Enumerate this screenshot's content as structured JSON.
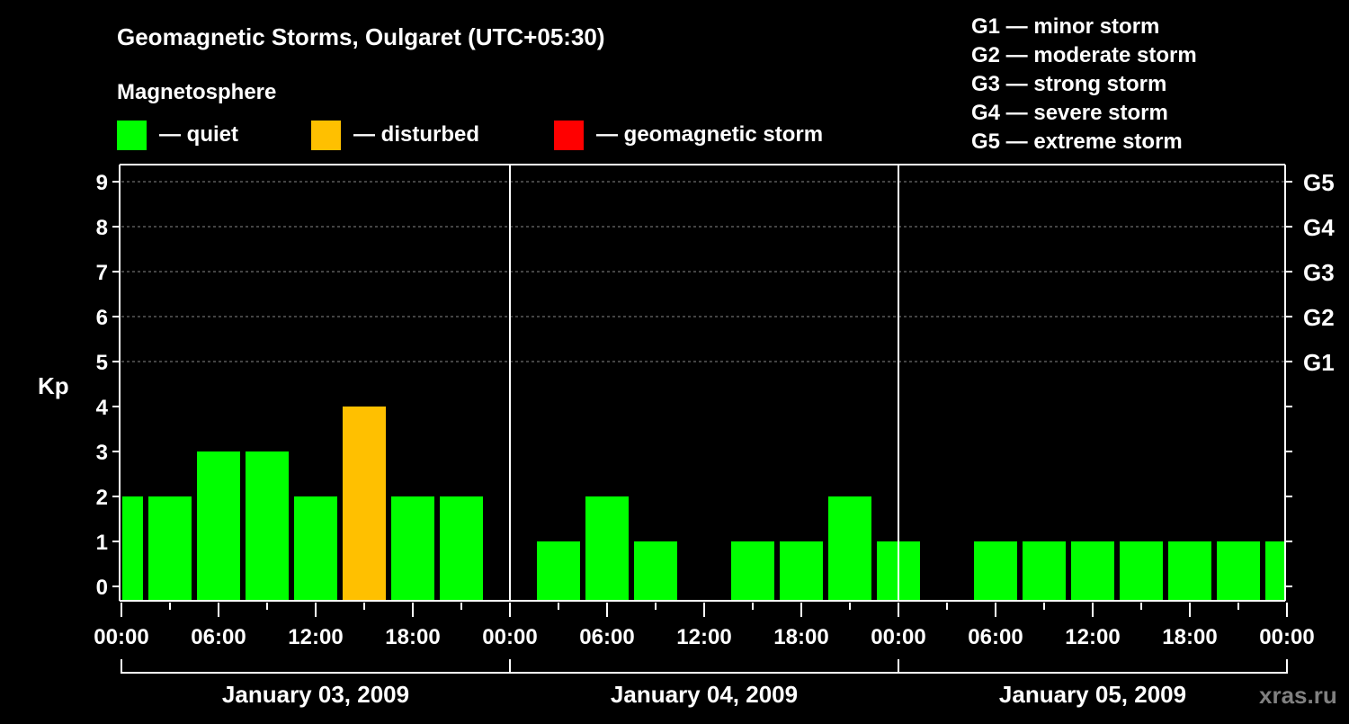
{
  "chart_data": {
    "type": "bar",
    "title": "Geomagnetic Storms, Oulgaret (UTC+05:30)",
    "ylabel": "Kp",
    "ylim": [
      0,
      9
    ],
    "yticks": [
      "0",
      "1",
      "2",
      "3",
      "4",
      "5",
      "6",
      "7",
      "8",
      "9"
    ],
    "right_ticks": [
      {
        "kp": 5,
        "label": "G1"
      },
      {
        "kp": 6,
        "label": "G2"
      },
      {
        "kp": 7,
        "label": "G3"
      },
      {
        "kp": 8,
        "label": "G4"
      },
      {
        "kp": 9,
        "label": "G5"
      }
    ],
    "xticks": [
      "00:00",
      "06:00",
      "12:00",
      "18:00",
      "00:00",
      "06:00",
      "12:00",
      "18:00",
      "00:00",
      "06:00",
      "12:00",
      "18:00",
      "00:00"
    ],
    "days": [
      "January 03, 2009",
      "January 04, 2009",
      "January 05, 2009"
    ],
    "interval_hours": 3,
    "offset_hours": -1.5,
    "values": [
      2,
      2,
      3,
      3,
      2,
      4,
      2,
      2,
      null,
      1,
      2,
      1,
      null,
      1,
      1,
      2,
      1,
      null,
      1,
      1,
      1,
      1,
      1,
      1,
      1
    ],
    "grid": true,
    "legend_title": "Magnetosphere",
    "legend": [
      {
        "label": "— quiet",
        "color": "#00ff00"
      },
      {
        "label": "— disturbed",
        "color": "#ffc000"
      },
      {
        "label": "— geomagnetic storm",
        "color": "#ff0000"
      }
    ],
    "scale_legend": [
      "G1 — minor storm",
      "G2 — moderate storm",
      "G3 — strong storm",
      "G4 — severe storm",
      "G5 — extreme storm"
    ],
    "watermark": "xras.ru"
  }
}
